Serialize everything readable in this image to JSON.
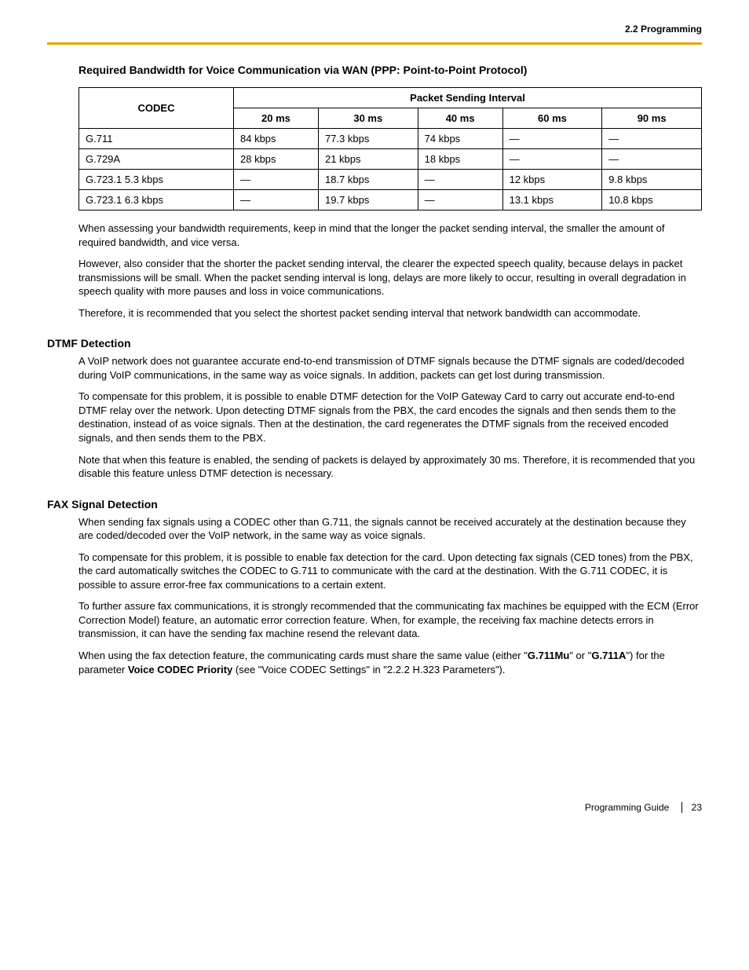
{
  "header": {
    "section": "2.2 Programming"
  },
  "rule_color": "#e0a800",
  "table1": {
    "title": "Required Bandwidth for Voice Communication via WAN (PPP: Point-to-Point Protocol)",
    "codec_header": "CODEC",
    "interval_header": "Packet Sending Interval",
    "cols": [
      "20 ms",
      "30 ms",
      "40 ms",
      "60 ms",
      "90 ms"
    ],
    "rows": [
      {
        "codec": "G.711",
        "v": [
          "84 kbps",
          "77.3 kbps",
          "74 kbps",
          "—",
          "—"
        ]
      },
      {
        "codec": "G.729A",
        "v": [
          "28 kbps",
          "21 kbps",
          "18 kbps",
          "—",
          "—"
        ]
      },
      {
        "codec": "G.723.1 5.3 kbps",
        "v": [
          "—",
          "18.7 kbps",
          "—",
          "12 kbps",
          "9.8 kbps"
        ]
      },
      {
        "codec": "G.723.1 6.3 kbps",
        "v": [
          "—",
          "19.7 kbps",
          "—",
          "13.1 kbps",
          "10.8 kbps"
        ]
      }
    ]
  },
  "para1": "When assessing your bandwidth requirements, keep in mind that the longer the packet sending interval, the smaller the amount of required bandwidth, and vice versa.",
  "para2": "However, also consider that the shorter the packet sending interval, the clearer the expected speech quality, because delays in packet transmissions will be small. When the packet sending interval is long, delays are more likely to occur, resulting in overall degradation in speech quality with more pauses and loss in voice communications.",
  "para3": "Therefore, it is recommended that you select the shortest packet sending interval that network bandwidth can accommodate.",
  "dtmf": {
    "heading": "DTMF Detection",
    "p1": "A VoIP network does not guarantee accurate end-to-end transmission of DTMF signals because the DTMF signals are coded/decoded during VoIP communications, in the same way as voice signals. In addition, packets can get lost during transmission.",
    "p2": "To compensate for this problem, it is possible to enable DTMF detection for the VoIP Gateway Card to carry out accurate end-to-end DTMF relay over the network. Upon detecting DTMF signals from the PBX, the card encodes the signals and then sends them to the destination, instead of as voice signals. Then at the destination, the card regenerates the DTMF signals from the received encoded signals, and then sends them to the PBX.",
    "p3": "Note that when this feature is enabled, the sending of packets is delayed by approximately 30 ms. Therefore, it is recommended that you disable this feature unless DTMF detection is necessary."
  },
  "fax": {
    "heading": "FAX Signal Detection",
    "p1": "When sending fax signals using a CODEC other than G.711, the signals cannot be received accurately at the destination because they are coded/decoded over the VoIP network, in the same way as voice signals.",
    "p2": "To compensate for this problem, it is possible to enable fax detection for the card. Upon detecting fax signals (CED tones) from the PBX, the card automatically switches the CODEC to G.711 to communicate with the card at the destination. With the G.711 CODEC, it is possible to assure error-free fax communications to a certain extent.",
    "p3": "To further assure fax communications, it is strongly recommended that the communicating fax machines be equipped with the ECM (Error Correction Model) feature, an automatic error correction feature. When, for example, the receiving fax machine detects errors in transmission, it can have the sending fax machine resend the relevant data.",
    "p4_pre": "When using the fax detection feature, the communicating cards must share the same value (either \"",
    "p4_b1": "G.711Mu",
    "p4_mid1": "\" or \"",
    "p4_b2": "G.711A",
    "p4_mid2": "\") for the parameter ",
    "p4_b3": "Voice CODEC Priority",
    "p4_post": " (see \"Voice CODEC Settings\" in \"2.2.2 H.323 Parameters\")."
  },
  "footer": {
    "doc": "Programming Guide",
    "page": "23"
  }
}
